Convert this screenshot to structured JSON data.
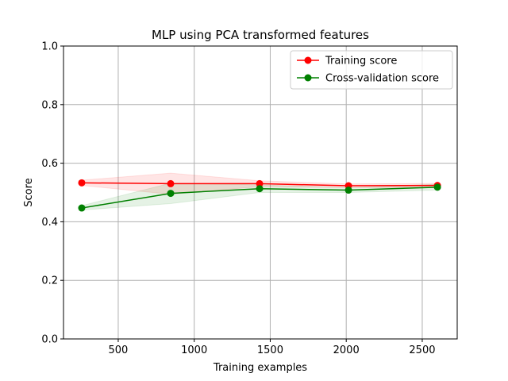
{
  "chart_data": {
    "type": "line",
    "title": "MLP using PCA transformed features",
    "xlabel": "Training examples",
    "ylabel": "Score",
    "xlim": [
      140,
      2730
    ],
    "ylim": [
      0,
      1.0
    ],
    "xticks": [
      500,
      1000,
      1500,
      2000,
      2500
    ],
    "yticks": [
      0.0,
      0.2,
      0.4,
      0.6,
      0.8,
      1.0
    ],
    "ytick_labels": [
      "0.0",
      "0.2",
      "0.4",
      "0.6",
      "0.8",
      "1.0"
    ],
    "grid": true,
    "legend_position": "top-right",
    "x": [
      260,
      845,
      1430,
      2015,
      2600
    ],
    "series": [
      {
        "name": "Training score",
        "color": "#ff0000",
        "values": [
          0.533,
          0.53,
          0.53,
          0.523,
          0.524
        ],
        "band_low": [
          0.524,
          0.494,
          0.52,
          0.517,
          0.517
        ],
        "band_high": [
          0.542,
          0.566,
          0.54,
          0.529,
          0.531
        ]
      },
      {
        "name": "Cross-validation score",
        "color": "#008000",
        "values": [
          0.447,
          0.497,
          0.513,
          0.508,
          0.518
        ],
        "band_low": [
          0.44,
          0.462,
          0.5,
          0.5,
          0.508
        ],
        "band_high": [
          0.455,
          0.532,
          0.526,
          0.516,
          0.528
        ]
      }
    ]
  }
}
